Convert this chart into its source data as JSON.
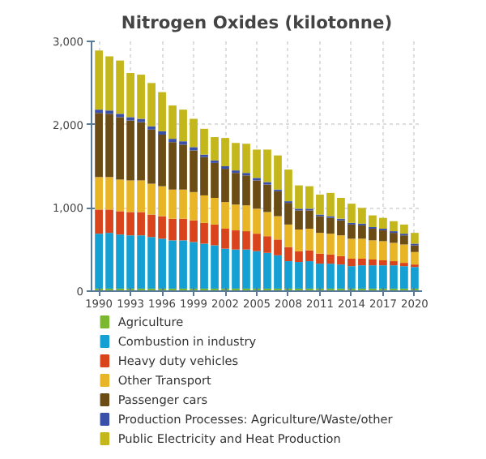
{
  "chart_data": {
    "type": "bar",
    "title": "Nitrogen Oxides (kilotonne)",
    "stacked": true,
    "x": [
      1990,
      1991,
      1992,
      1993,
      1994,
      1995,
      1996,
      1997,
      1998,
      1999,
      2000,
      2001,
      2002,
      2003,
      2004,
      2005,
      2006,
      2007,
      2008,
      2009,
      2010,
      2011,
      2012,
      2013,
      2014,
      2015,
      2016,
      2017,
      2018,
      2019,
      2020
    ],
    "xlim": [
      1989.3,
      2020.7
    ],
    "xticks": [
      1990,
      1993,
      1996,
      1999,
      2002,
      2005,
      2008,
      2011,
      2014,
      2017,
      2020
    ],
    "ylim": [
      0,
      3000
    ],
    "yticks": [
      0,
      {
        "value": 1000,
        "label": "1,000"
      },
      {
        "value": 2000,
        "label": "2,000"
      },
      {
        "value": 3000,
        "label": "3,000"
      }
    ],
    "grid": true,
    "legend": "bottom",
    "series": [
      {
        "name": "Agriculture",
        "color": "#7cb82f",
        "values": [
          30,
          30,
          30,
          30,
          30,
          30,
          30,
          30,
          30,
          30,
          30,
          30,
          30,
          30,
          30,
          30,
          30,
          30,
          30,
          30,
          30,
          30,
          30,
          30,
          30,
          30,
          30,
          30,
          30,
          30,
          30
        ]
      },
      {
        "name": "Combustion in industry",
        "color": "#14a0d2",
        "values": [
          660,
          670,
          650,
          640,
          640,
          620,
          600,
          580,
          580,
          560,
          540,
          520,
          480,
          470,
          470,
          450,
          430,
          400,
          330,
          320,
          330,
          300,
          300,
          290,
          270,
          280,
          280,
          280,
          280,
          270,
          260
        ]
      },
      {
        "name": "Heavy duty vehicles",
        "color": "#d9441c",
        "values": [
          290,
          280,
          280,
          280,
          280,
          270,
          270,
          260,
          260,
          260,
          250,
          250,
          240,
          230,
          220,
          210,
          200,
          190,
          170,
          130,
          130,
          120,
          110,
          100,
          90,
          80,
          70,
          60,
          50,
          40,
          30
        ]
      },
      {
        "name": "Other Transport",
        "color": "#e8b526",
        "values": [
          390,
          390,
          380,
          380,
          380,
          370,
          360,
          350,
          350,
          340,
          330,
          320,
          320,
          310,
          310,
          300,
          290,
          280,
          270,
          260,
          260,
          250,
          250,
          250,
          240,
          240,
          230,
          230,
          220,
          220,
          150
        ]
      },
      {
        "name": "Passenger cars",
        "color": "#6b4c14",
        "values": [
          770,
          760,
          750,
          720,
          700,
          650,
          620,
          570,
          540,
          500,
          460,
          420,
          400,
          380,
          360,
          340,
          330,
          300,
          260,
          230,
          220,
          200,
          190,
          180,
          170,
          160,
          140,
          130,
          120,
          110,
          80
        ]
      },
      {
        "name": "Production Processes: Agriculture/Waste/other",
        "color": "#3a4fa8",
        "values": [
          40,
          40,
          40,
          40,
          40,
          40,
          40,
          40,
          40,
          40,
          30,
          30,
          30,
          30,
          30,
          30,
          30,
          20,
          20,
          20,
          20,
          20,
          20,
          20,
          20,
          20,
          20,
          20,
          20,
          20,
          20
        ]
      },
      {
        "name": "Public Electricity and Heat Production",
        "color": "#c4b71c",
        "values": [
          710,
          650,
          640,
          530,
          530,
          520,
          470,
          400,
          380,
          340,
          310,
          280,
          340,
          330,
          350,
          340,
          390,
          410,
          380,
          280,
          270,
          240,
          280,
          250,
          230,
          190,
          140,
          130,
          120,
          110,
          130
        ]
      }
    ]
  }
}
